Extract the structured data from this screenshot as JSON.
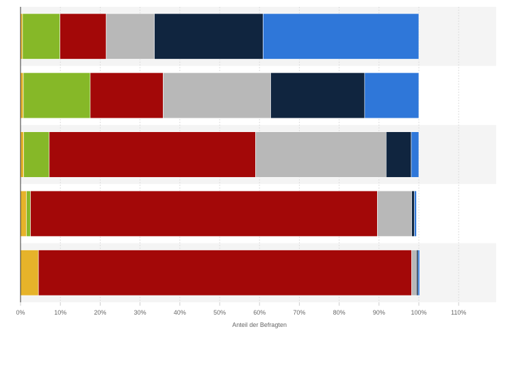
{
  "chart_data": {
    "type": "bar",
    "orientation": "horizontal",
    "stacked": true,
    "xlabel": "Anteil der Befragten",
    "ylabel": "",
    "xlim": [
      0,
      110
    ],
    "x_ticks": [
      "0%",
      "10%",
      "20%",
      "30%",
      "40%",
      "50%",
      "60%",
      "70%",
      "80%",
      "90%",
      "100%",
      "110%"
    ],
    "grid": true,
    "legend": "none",
    "categories": [
      "",
      "",
      "",
      "",
      ""
    ],
    "series": [
      {
        "color": "#e6b32a",
        "values": [
          0.5,
          0.7,
          0.8,
          1.5,
          4.5
        ]
      },
      {
        "color": "#86b828",
        "values": [
          9.4,
          16.8,
          6.4,
          1.0,
          0.0
        ]
      },
      {
        "color": "#a30808",
        "values": [
          11.6,
          18.3,
          51.8,
          87.1,
          93.7
        ]
      },
      {
        "color": "#b8b8b8",
        "values": [
          12.1,
          27.0,
          32.8,
          8.6,
          1.2
        ]
      },
      {
        "color": "#10253f",
        "values": [
          27.3,
          23.6,
          6.3,
          0.7,
          0.4
        ]
      },
      {
        "color": "#2f77d9",
        "values": [
          39.1,
          13.6,
          1.9,
          0.5,
          0.4
        ]
      }
    ]
  }
}
